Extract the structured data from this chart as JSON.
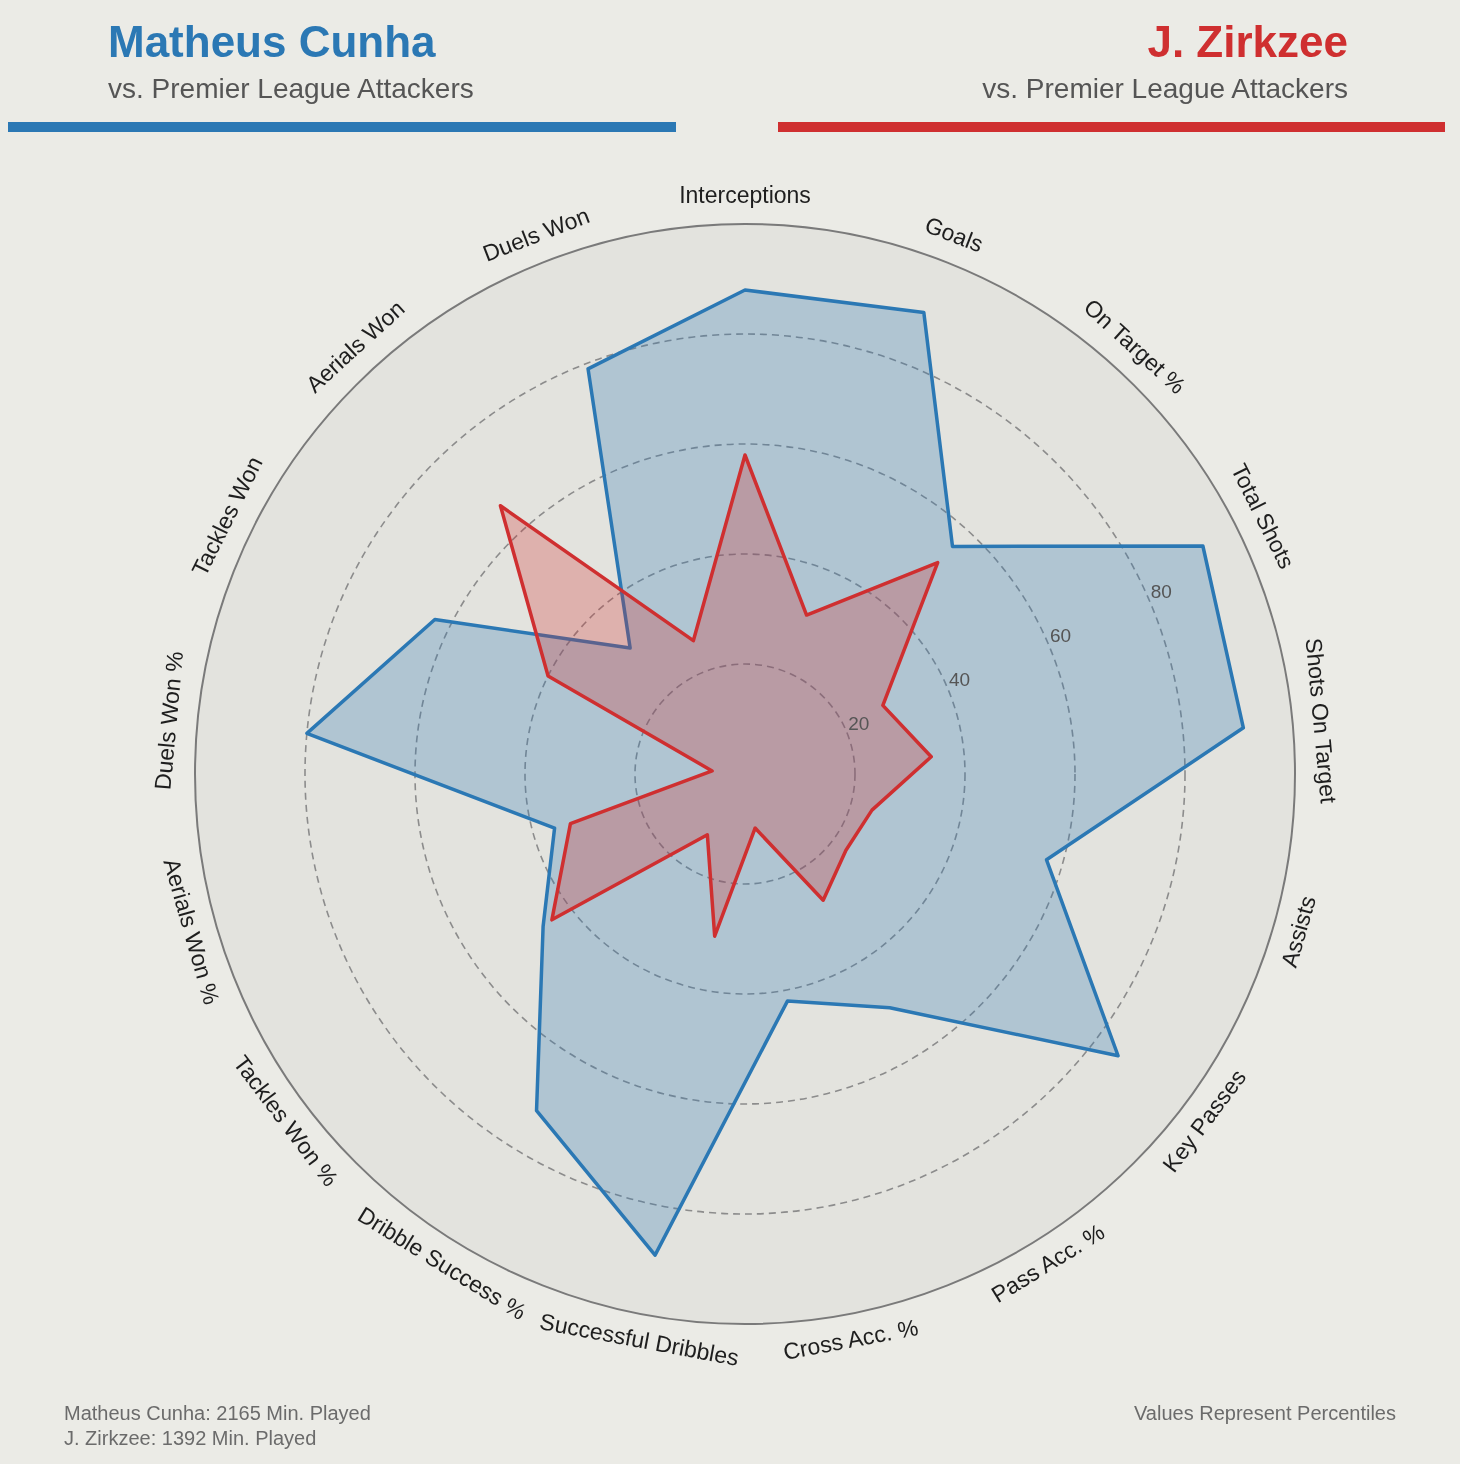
{
  "chart_data": {
    "type": "radar",
    "subtitle": "vs. Premier League Attackers",
    "categories": [
      "Interceptions",
      "Goals",
      "On Target %",
      "Total Shots",
      "Shots On Target",
      "Assists",
      "Key Passes",
      "Pass Acc. %",
      "Cross Acc. %",
      "Successful Dribbles",
      "Dribble Success %",
      "Tackles Won %",
      "Aerials Won %",
      "Duels Won %",
      "Tackles Won",
      "Aerials Won",
      "Duels Won"
    ],
    "series": [
      {
        "name": "Matheus Cunha",
        "color": "#2b78b4",
        "values": [
          88,
          90,
          56,
          93,
          91,
          57,
          85,
          50,
          42,
          89,
          72,
          46,
          36,
          80,
          63,
          31,
          79
        ]
      },
      {
        "name": "J. Zirkzee",
        "color": "#cf2f30",
        "values": [
          58,
          31,
          52,
          28,
          34,
          24,
          23,
          27,
          10,
          30,
          13,
          44,
          33,
          6,
          40,
          66,
          26
        ]
      }
    ],
    "ylim": [
      0,
      100
    ],
    "yticks": [
      20,
      40,
      60,
      80
    ],
    "grid": true,
    "legend": "top",
    "annotations": [
      "Matheus Cunha: 2165 Min. Played",
      "J. Zirkzee: 1392 Min. Played",
      "Values Represent Percentiles"
    ]
  }
}
